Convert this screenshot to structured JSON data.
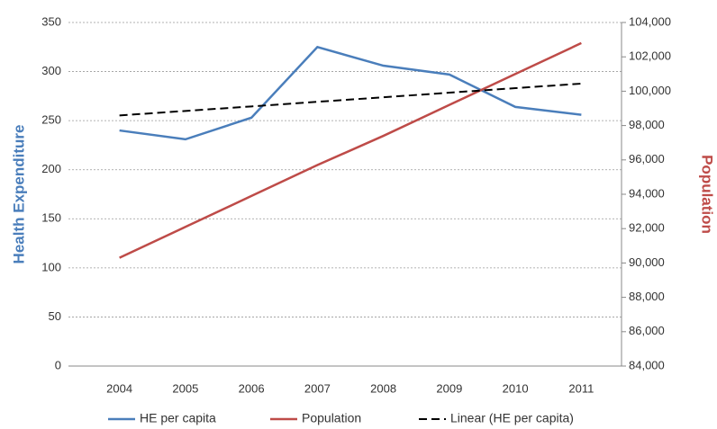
{
  "chart_data": {
    "type": "line",
    "y_label": "Health Expenditure",
    "y2_label": "Population",
    "categories": [
      "2004",
      "2005",
      "2006",
      "2007",
      "2008",
      "2009",
      "2010",
      "2011"
    ],
    "series": [
      {
        "name": "HE per capita",
        "color": "#4a7ebb",
        "values": [
          240,
          231,
          253,
          325,
          306,
          297,
          264,
          256
        ]
      },
      {
        "name": "Population",
        "color": "#be4b48",
        "axis": "y2",
        "values": [
          90300,
          92100,
          93900,
          95700,
          97400,
          99200,
          101000,
          102800
        ]
      },
      {
        "name": "Linear (HE per capita)",
        "color": "#000000",
        "dashed": true,
        "values": [
          255.3,
          259.9,
          264.5,
          269.2,
          273.8,
          278.5,
          283.1,
          287.7
        ]
      }
    ],
    "ylim": [
      0,
      350
    ],
    "yticks": [
      0,
      50,
      100,
      150,
      200,
      250,
      300,
      350
    ],
    "y2lim": [
      84000,
      104000
    ],
    "y2ticks": [
      {
        "value": 84000,
        "label": "84,000"
      },
      {
        "value": 86000,
        "label": "86,000"
      },
      {
        "value": 88000,
        "label": "88,000"
      },
      {
        "value": 90000,
        "label": "90,000"
      },
      {
        "value": 92000,
        "label": "92,000"
      },
      {
        "value": 94000,
        "label": "94,000"
      },
      {
        "value": 96000,
        "label": "96,000"
      },
      {
        "value": 98000,
        "label": "98,000"
      },
      {
        "value": 100000,
        "label": "100,000"
      },
      {
        "value": 102000,
        "label": "102,000"
      },
      {
        "value": 104000,
        "label": "104,000"
      }
    ],
    "grid": true,
    "legend": "bottom"
  }
}
